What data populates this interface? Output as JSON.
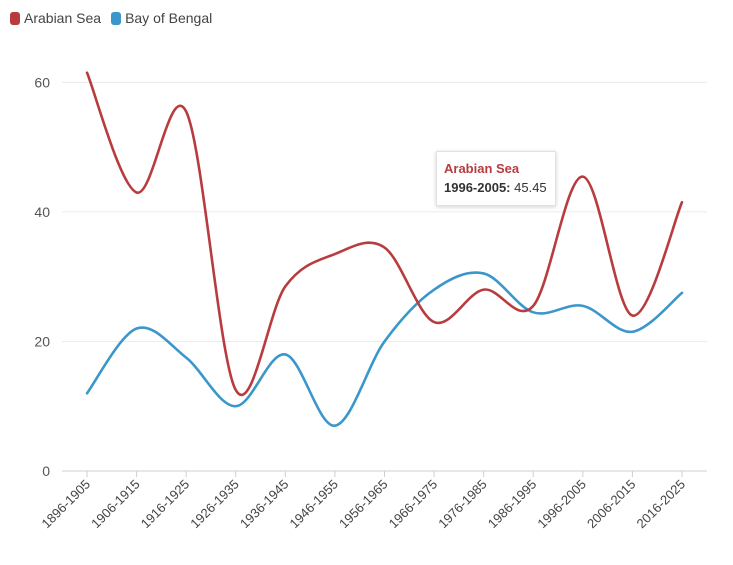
{
  "legend": [
    {
      "label": "Arabian Sea",
      "color": "#B83B3E"
    },
    {
      "label": "Bay of Bengal",
      "color": "#3B96CB"
    }
  ],
  "tooltip": {
    "series": "Arabian Sea",
    "category": "1996-2005:",
    "value": "45.45",
    "color": "#B83B3E"
  },
  "chart_data": {
    "type": "line",
    "title": "",
    "xlabel": "",
    "ylabel": "",
    "categories": [
      "1896-1905",
      "1906-1915",
      "1916-1925",
      "1926-1935",
      "1936-1945",
      "1946-1955",
      "1956-1965",
      "1966-1975",
      "1976-1985",
      "1986-1995",
      "1996-2005",
      "2006-2015",
      "2016-2025"
    ],
    "series": [
      {
        "name": "Arabian Sea",
        "color": "#B83B3E",
        "values": [
          61.5,
          43,
          55.5,
          12.5,
          28.5,
          33.5,
          34.5,
          23,
          28,
          25.5,
          45.45,
          24,
          41.5
        ]
      },
      {
        "name": "Bay of Bengal",
        "color": "#3B96CB",
        "values": [
          12,
          22,
          17.5,
          10,
          18,
          7,
          20,
          28,
          30.5,
          24.5,
          25.5,
          21.5,
          27.5
        ]
      }
    ],
    "ylim": [
      0,
      65
    ],
    "yticks": [
      0,
      20,
      40,
      60
    ],
    "grid": true,
    "legend_position": "top-left"
  }
}
